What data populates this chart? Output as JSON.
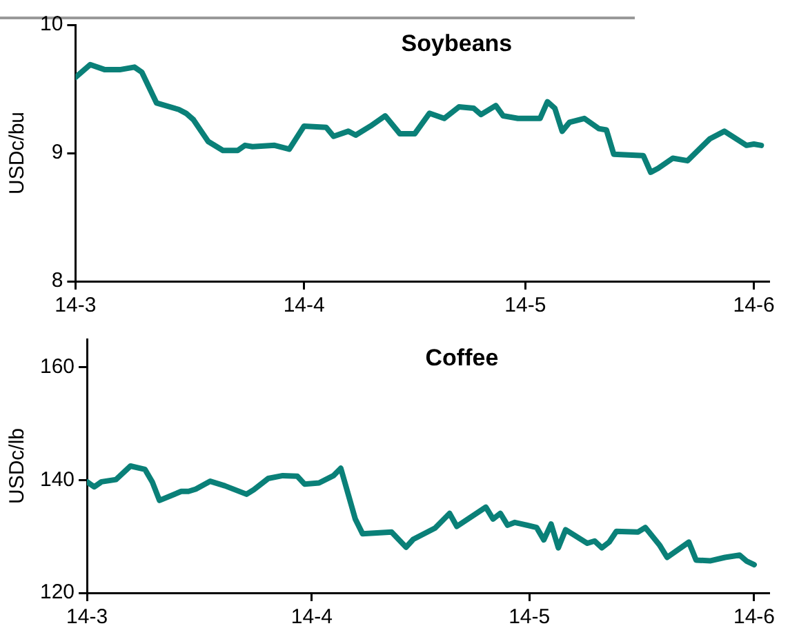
{
  "chart_data": [
    {
      "type": "line",
      "title": "Soybeans",
      "ylabel": "USDc/bu",
      "xlim": [
        "--03-01",
        "--06-03"
      ],
      "xticks": [
        {
          "value": "--03-01",
          "label": "14-3"
        },
        {
          "value": "--04-01",
          "label": "14-4"
        },
        {
          "value": "--05-01",
          "label": "14-5"
        },
        {
          "value": "--06-01",
          "label": "14-6"
        }
      ],
      "ylim": [
        8,
        10
      ],
      "yticks": [
        8,
        9,
        10
      ],
      "grid": false,
      "legend": false,
      "marker": "none",
      "line_style": "solid",
      "series": [
        {
          "color": "#0a8078",
          "x": [
            "--03-01",
            "--03-03",
            "--03-05",
            "--03-07",
            "--03-09",
            "--03-10",
            "--03-12",
            "--03-15",
            "--03-16",
            "--03-17",
            "--03-19",
            "--03-21",
            "--03-23",
            "--03-24",
            "--03-25",
            "--03-28",
            "--03-30",
            "--04-01",
            "--04-04",
            "--04-05",
            "--04-07",
            "--04-08",
            "--04-10",
            "--04-12",
            "--04-14",
            "--04-16",
            "--04-18",
            "--04-20",
            "--04-22",
            "--04-24",
            "--04-25",
            "--04-27",
            "--04-28",
            "--04-30",
            "--05-03",
            "--05-04",
            "--05-05",
            "--05-06",
            "--05-07",
            "--05-09",
            "--05-11",
            "--05-12",
            "--05-13",
            "--05-17",
            "--05-18",
            "--05-19",
            "--05-21",
            "--05-23",
            "--05-26",
            "--05-28",
            "--05-31",
            "--06-01",
            "--06-02"
          ],
          "values": [
            9.59,
            9.69,
            9.65,
            9.65,
            9.67,
            9.63,
            9.39,
            9.34,
            9.31,
            9.26,
            9.09,
            9.02,
            9.02,
            9.06,
            9.05,
            9.06,
            9.03,
            9.21,
            9.2,
            9.13,
            9.17,
            9.14,
            9.21,
            9.29,
            9.15,
            9.15,
            9.31,
            9.27,
            9.36,
            9.35,
            9.3,
            9.37,
            9.29,
            9.27,
            9.27,
            9.4,
            9.35,
            9.17,
            9.24,
            9.27,
            9.19,
            9.18,
            8.99,
            8.98,
            8.85,
            8.88,
            8.96,
            8.94,
            9.11,
            9.17,
            9.06,
            9.07,
            9.06
          ]
        }
      ]
    },
    {
      "type": "line",
      "title": "Coffee",
      "ylabel": "USDc/lb",
      "xlim": [
        "--03-01",
        "--06-03"
      ],
      "xticks": [
        {
          "value": "--03-01",
          "label": "14-3"
        },
        {
          "value": "--04-01",
          "label": "14-4"
        },
        {
          "value": "--05-01",
          "label": "14-5"
        },
        {
          "value": "--06-01",
          "label": "14-6"
        }
      ],
      "ylim": [
        120,
        165
      ],
      "yticks": [
        120,
        140,
        160
      ],
      "grid": false,
      "legend": false,
      "marker": "none",
      "line_style": "solid",
      "series": [
        {
          "color": "#0a8078",
          "x": [
            "--03-01",
            "--03-02",
            "--03-03",
            "--03-05",
            "--03-07",
            "--03-09",
            "--03-10",
            "--03-11",
            "--03-14",
            "--03-15",
            "--03-16",
            "--03-18",
            "--03-20",
            "--03-23",
            "--03-24",
            "--03-26",
            "--03-28",
            "--03-30",
            "--03-31",
            "--04-02",
            "--04-04",
            "--04-05",
            "--04-07",
            "--04-08",
            "--04-12",
            "--04-14",
            "--04-15",
            "--04-18",
            "--04-20",
            "--04-21",
            "--04-25",
            "--04-26",
            "--04-27",
            "--04-28",
            "--04-29",
            "--05-02",
            "--05-03",
            "--05-04",
            "--05-05",
            "--05-06",
            "--05-09",
            "--05-10",
            "--05-11",
            "--05-12",
            "--05-13",
            "--05-16",
            "--05-17",
            "--05-19",
            "--05-20",
            "--05-23",
            "--05-24",
            "--05-26",
            "--05-28",
            "--05-30",
            "--05-31",
            "--06-01"
          ],
          "values": [
            139.7,
            138.8,
            139.7,
            140.1,
            142.5,
            141.9,
            139.7,
            136.4,
            138.0,
            138.0,
            138.4,
            139.8,
            139.0,
            137.5,
            138.3,
            140.3,
            140.8,
            140.7,
            139.3,
            139.5,
            140.8,
            142.1,
            133.1,
            130.5,
            130.8,
            128.1,
            129.5,
            131.5,
            134.1,
            131.8,
            135.2,
            133.1,
            134.1,
            132.0,
            132.5,
            131.6,
            129.4,
            132.2,
            128.0,
            131.2,
            128.8,
            129.2,
            128.0,
            129.0,
            130.9,
            130.8,
            131.6,
            128.4,
            126.3,
            129.0,
            125.8,
            125.7,
            126.3,
            126.7,
            125.6,
            125.0
          ]
        }
      ]
    }
  ]
}
